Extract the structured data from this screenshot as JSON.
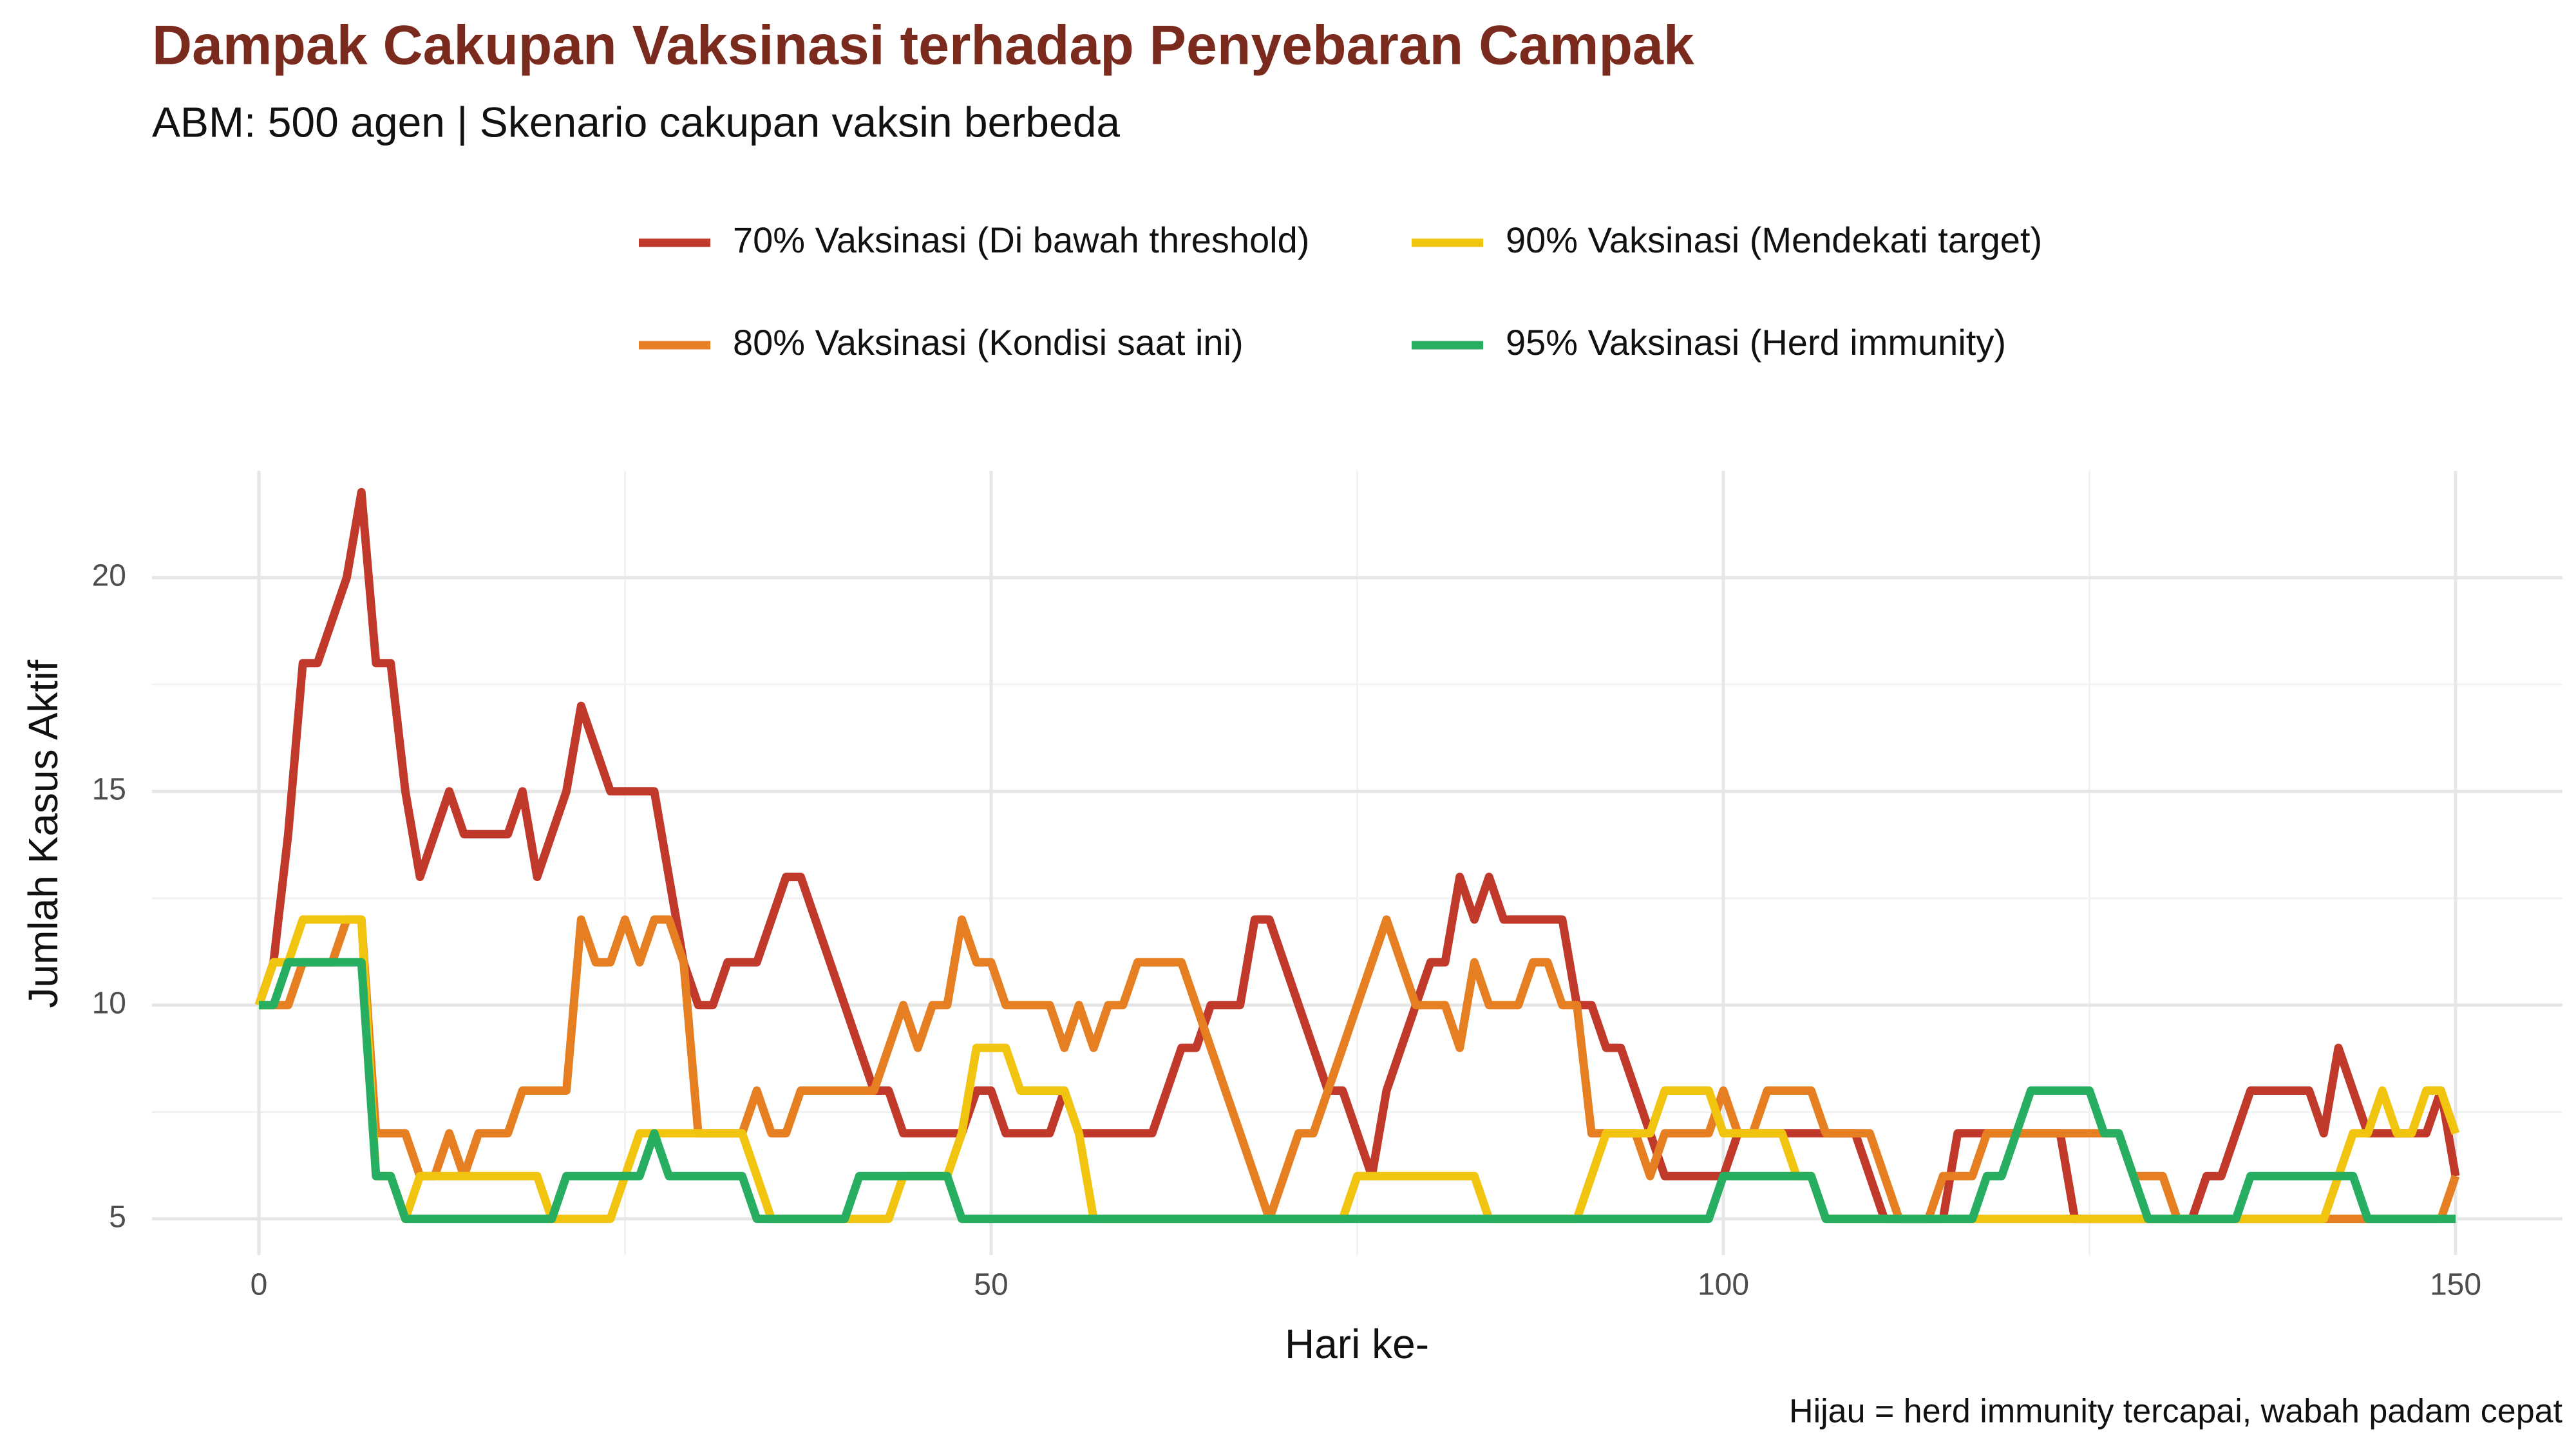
{
  "chart_data": {
    "type": "line",
    "title": "Dampak Cakupan Vaksinasi terhadap Penyebaran Campak",
    "subtitle": "ABM: 500 agen | Skenario cakupan vaksin berbeda",
    "x_label": "Hari ke-",
    "y_label": "Jumlah Kasus Aktif",
    "caption": "Hijau = herd immunity tercapai, wabah padam cepat",
    "x": [
      0,
      1,
      2,
      3,
      4,
      5,
      6,
      7,
      8,
      9,
      10,
      11,
      12,
      13,
      14,
      15,
      16,
      17,
      18,
      19,
      20,
      21,
      22,
      23,
      24,
      25,
      26,
      27,
      28,
      29,
      30,
      31,
      32,
      33,
      34,
      35,
      36,
      37,
      38,
      39,
      40,
      41,
      42,
      43,
      44,
      45,
      46,
      47,
      48,
      49,
      50,
      51,
      52,
      53,
      54,
      55,
      56,
      57,
      58,
      59,
      60,
      61,
      62,
      63,
      64,
      65,
      66,
      67,
      68,
      69,
      70,
      71,
      72,
      73,
      74,
      75,
      76,
      77,
      78,
      79,
      80,
      81,
      82,
      83,
      84,
      85,
      86,
      87,
      88,
      89,
      90,
      91,
      92,
      93,
      94,
      95,
      96,
      97,
      98,
      99,
      100,
      101,
      102,
      103,
      104,
      105,
      106,
      107,
      108,
      109,
      110,
      111,
      112,
      113,
      114,
      115,
      116,
      117,
      118,
      119,
      120,
      121,
      122,
      123,
      124,
      125,
      126,
      127,
      128,
      129,
      130,
      131,
      132,
      133,
      134,
      135,
      136,
      137,
      138,
      139,
      140,
      141,
      142,
      143,
      144,
      145,
      146,
      147,
      148,
      149,
      150
    ],
    "series": [
      {
        "name": "70% Vaksinasi (Di bawah threshold)",
        "color": "#c0392b",
        "values": [
          10,
          11,
          14,
          18,
          18,
          19,
          20,
          22,
          18,
          18,
          15,
          13,
          14,
          15,
          14,
          14,
          14,
          14,
          15,
          13,
          14,
          15,
          17,
          16,
          15,
          15,
          15,
          15,
          13,
          11,
          10,
          10,
          11,
          11,
          11,
          12,
          13,
          13,
          12,
          11,
          10,
          9,
          8,
          8,
          7,
          7,
          7,
          7,
          7,
          8,
          8,
          7,
          7,
          7,
          7,
          8,
          7,
          7,
          7,
          7,
          7,
          7,
          8,
          9,
          9,
          10,
          10,
          10,
          12,
          12,
          11,
          10,
          9,
          8,
          8,
          7,
          6,
          8,
          9,
          10,
          11,
          11,
          13,
          12,
          13,
          12,
          12,
          12,
          12,
          12,
          10,
          10,
          9,
          9,
          8,
          7,
          6,
          6,
          6,
          6,
          6,
          7,
          7,
          7,
          7,
          7,
          7,
          7,
          7,
          7,
          6,
          5,
          5,
          5,
          5,
          5,
          7,
          7,
          7,
          7,
          7,
          7,
          7,
          7,
          5,
          5,
          5,
          5,
          5,
          5,
          5,
          5,
          5,
          6,
          6,
          7,
          8,
          8,
          8,
          8,
          8,
          7,
          9,
          8,
          7,
          7,
          7,
          7,
          7,
          8,
          6
        ]
      },
      {
        "name": "80% Vaksinasi (Kondisi saat ini)",
        "color": "#e67e22",
        "values": [
          10,
          10,
          10,
          11,
          11,
          11,
          12,
          12,
          7,
          7,
          7,
          6,
          6,
          7,
          6,
          7,
          7,
          7,
          8,
          8,
          8,
          8,
          12,
          11,
          11,
          12,
          11,
          12,
          12,
          11,
          7,
          7,
          7,
          7,
          8,
          7,
          7,
          8,
          8,
          8,
          8,
          8,
          8,
          9,
          10,
          9,
          10,
          10,
          12,
          11,
          11,
          10,
          10,
          10,
          10,
          9,
          10,
          9,
          10,
          10,
          11,
          11,
          11,
          11,
          10,
          9,
          8,
          7,
          6,
          5,
          6,
          7,
          7,
          8,
          9,
          10,
          11,
          12,
          11,
          10,
          10,
          10,
          9,
          11,
          10,
          10,
          10,
          11,
          11,
          10,
          10,
          7,
          7,
          7,
          7,
          6,
          7,
          7,
          7,
          7,
          8,
          7,
          7,
          8,
          8,
          8,
          8,
          7,
          7,
          7,
          7,
          6,
          5,
          5,
          5,
          6,
          6,
          6,
          7,
          7,
          7,
          7,
          7,
          7,
          7,
          7,
          7,
          7,
          6,
          6,
          6,
          5,
          5,
          5,
          5,
          5,
          5,
          5,
          5,
          5,
          5,
          5,
          5,
          5,
          5,
          5,
          5,
          5,
          5,
          5,
          6
        ]
      },
      {
        "name": "90% Vaksinasi (Mendekati target)",
        "color": "#f1c40f",
        "values": [
          10,
          11,
          11,
          12,
          12,
          12,
          12,
          12,
          6,
          6,
          5,
          6,
          6,
          6,
          6,
          6,
          6,
          6,
          6,
          6,
          5,
          5,
          5,
          5,
          5,
          6,
          7,
          7,
          7,
          7,
          7,
          7,
          7,
          7,
          6,
          5,
          5,
          5,
          5,
          5,
          5,
          5,
          5,
          5,
          6,
          6,
          6,
          6,
          7,
          9,
          9,
          9,
          8,
          8,
          8,
          8,
          7,
          5,
          5,
          5,
          5,
          5,
          5,
          5,
          5,
          5,
          5,
          5,
          5,
          5,
          5,
          5,
          5,
          5,
          5,
          6,
          6,
          6,
          6,
          6,
          6,
          6,
          6,
          6,
          5,
          5,
          5,
          5,
          5,
          5,
          5,
          6,
          7,
          7,
          7,
          7,
          8,
          8,
          8,
          8,
          7,
          7,
          7,
          7,
          7,
          6,
          6,
          5,
          5,
          5,
          5,
          5,
          5,
          5,
          5,
          5,
          5,
          5,
          5,
          5,
          5,
          5,
          5,
          5,
          5,
          5,
          5,
          5,
          5,
          5,
          5,
          5,
          5,
          5,
          5,
          5,
          5,
          5,
          5,
          5,
          5,
          5,
          6,
          7,
          7,
          8,
          7,
          7,
          8,
          8,
          7
        ]
      },
      {
        "name": "95% Vaksinasi (Herd immunity)",
        "color": "#27ae60",
        "values": [
          10,
          10,
          11,
          11,
          11,
          11,
          11,
          11,
          6,
          6,
          5,
          5,
          5,
          5,
          5,
          5,
          5,
          5,
          5,
          5,
          5,
          6,
          6,
          6,
          6,
          6,
          6,
          7,
          6,
          6,
          6,
          6,
          6,
          6,
          5,
          5,
          5,
          5,
          5,
          5,
          5,
          6,
          6,
          6,
          6,
          6,
          6,
          6,
          5,
          5,
          5,
          5,
          5,
          5,
          5,
          5,
          5,
          5,
          5,
          5,
          5,
          5,
          5,
          5,
          5,
          5,
          5,
          5,
          5,
          5,
          5,
          5,
          5,
          5,
          5,
          5,
          5,
          5,
          5,
          5,
          5,
          5,
          5,
          5,
          5,
          5,
          5,
          5,
          5,
          5,
          5,
          5,
          5,
          5,
          5,
          5,
          5,
          5,
          5,
          5,
          6,
          6,
          6,
          6,
          6,
          6,
          6,
          5,
          5,
          5,
          5,
          5,
          5,
          5,
          5,
          5,
          5,
          5,
          6,
          6,
          7,
          8,
          8,
          8,
          8,
          8,
          7,
          7,
          6,
          5,
          5,
          5,
          5,
          5,
          5,
          5,
          6,
          6,
          6,
          6,
          6,
          6,
          6,
          6,
          5,
          5,
          5,
          5,
          5,
          5,
          5
        ]
      }
    ],
    "xlim": [
      -7.3,
      157.3
    ],
    "ylim": [
      4.15,
      22.5
    ],
    "xticks": [
      0,
      50,
      100,
      150
    ],
    "yticks": [
      5,
      10,
      15,
      20
    ],
    "grid": true
  }
}
